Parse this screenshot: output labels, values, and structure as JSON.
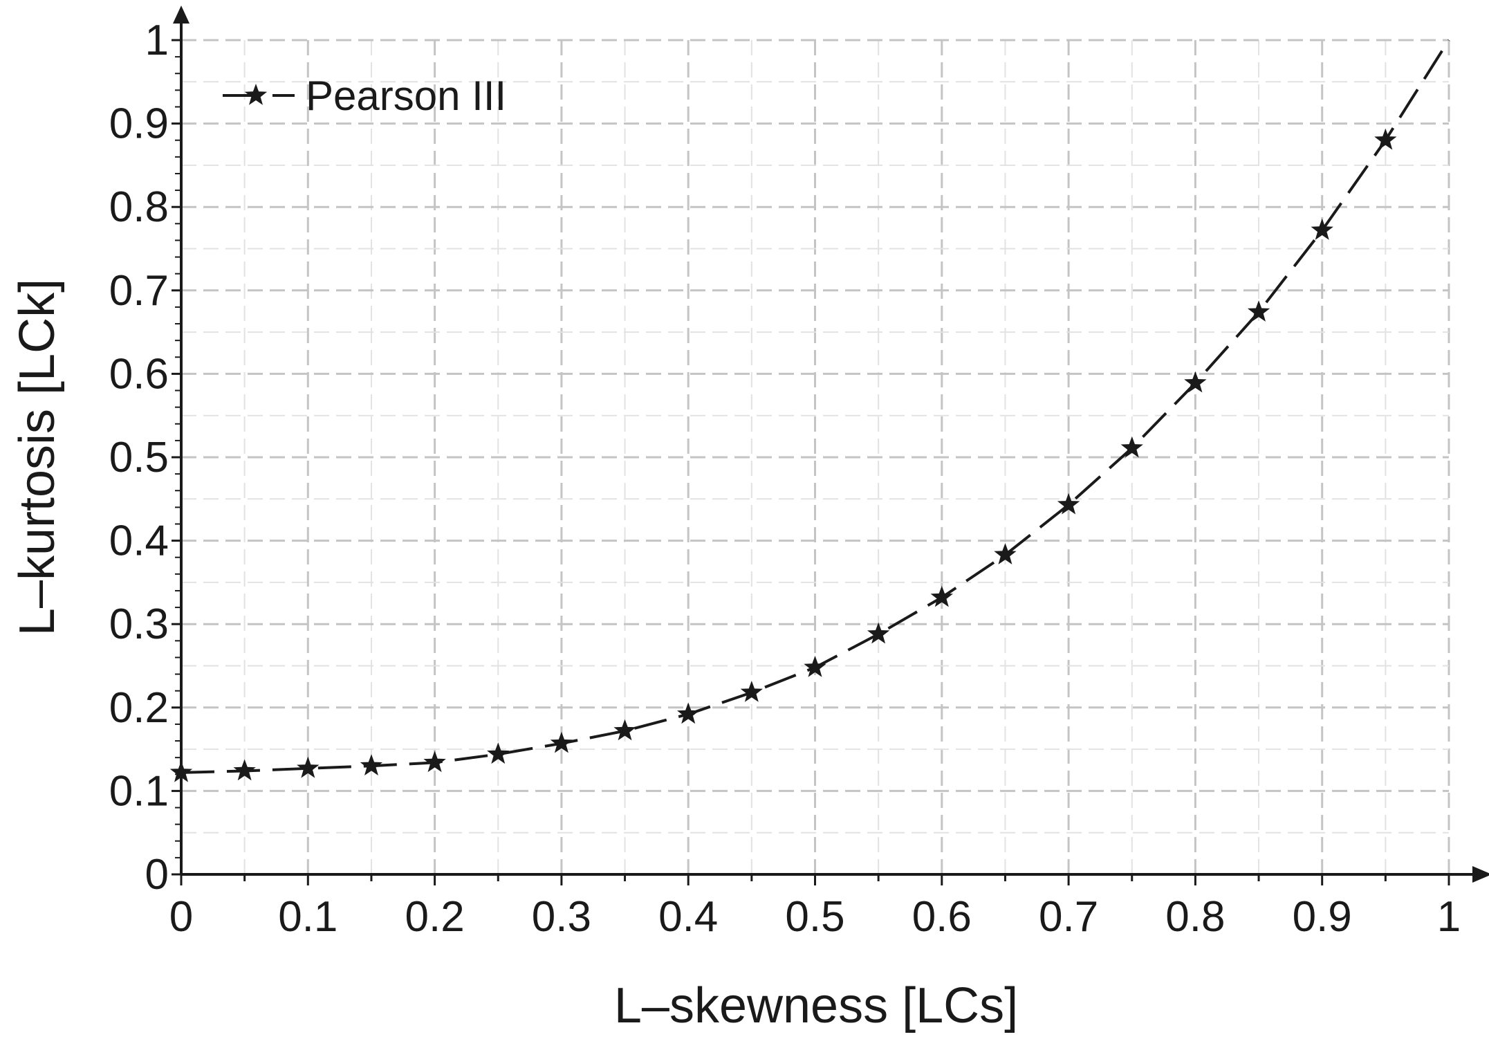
{
  "chart_data": {
    "type": "line",
    "title": "",
    "xlabel": "L–skewness [LCs]",
    "ylabel": "L–kurtosis [LCk]",
    "xlim": [
      0,
      1
    ],
    "ylim": [
      0,
      1
    ],
    "x_ticks": [
      0,
      0.1,
      0.2,
      0.3,
      0.4,
      0.5,
      0.6,
      0.7,
      0.8,
      0.9,
      1
    ],
    "x_tick_labels": [
      "0",
      "0.1",
      "0.2",
      "0.3",
      "0.4",
      "0.5",
      "0.6",
      "0.7",
      "0.8",
      "0.9",
      "1"
    ],
    "y_ticks": [
      0,
      0.1,
      0.2,
      0.3,
      0.4,
      0.5,
      0.6,
      0.7,
      0.8,
      0.9,
      1
    ],
    "y_tick_labels": [
      "0",
      "0.1",
      "0.2",
      "0.3",
      "0.4",
      "0.5",
      "0.6",
      "0.7",
      "0.8",
      "0.9",
      "1"
    ],
    "grid": true,
    "legend_position": "top-left",
    "series": [
      {
        "name": "Pearson III",
        "line_style": "dashed",
        "marker": "star",
        "color": "#1a1a1a",
        "x": [
          0,
          0.05,
          0.1,
          0.15,
          0.2,
          0.25,
          0.3,
          0.35,
          0.4,
          0.45,
          0.5,
          0.55,
          0.6,
          0.65,
          0.7,
          0.75,
          0.8,
          0.85,
          0.9,
          0.95
        ],
        "y": [
          0.122,
          0.124,
          0.127,
          0.13,
          0.134,
          0.144,
          0.157,
          0.172,
          0.192,
          0.218,
          0.248,
          0.288,
          0.332,
          0.383,
          0.443,
          0.511,
          0.589,
          0.674,
          0.772,
          0.88
        ]
      }
    ],
    "curve_end_point": [
      1,
      1
    ]
  }
}
